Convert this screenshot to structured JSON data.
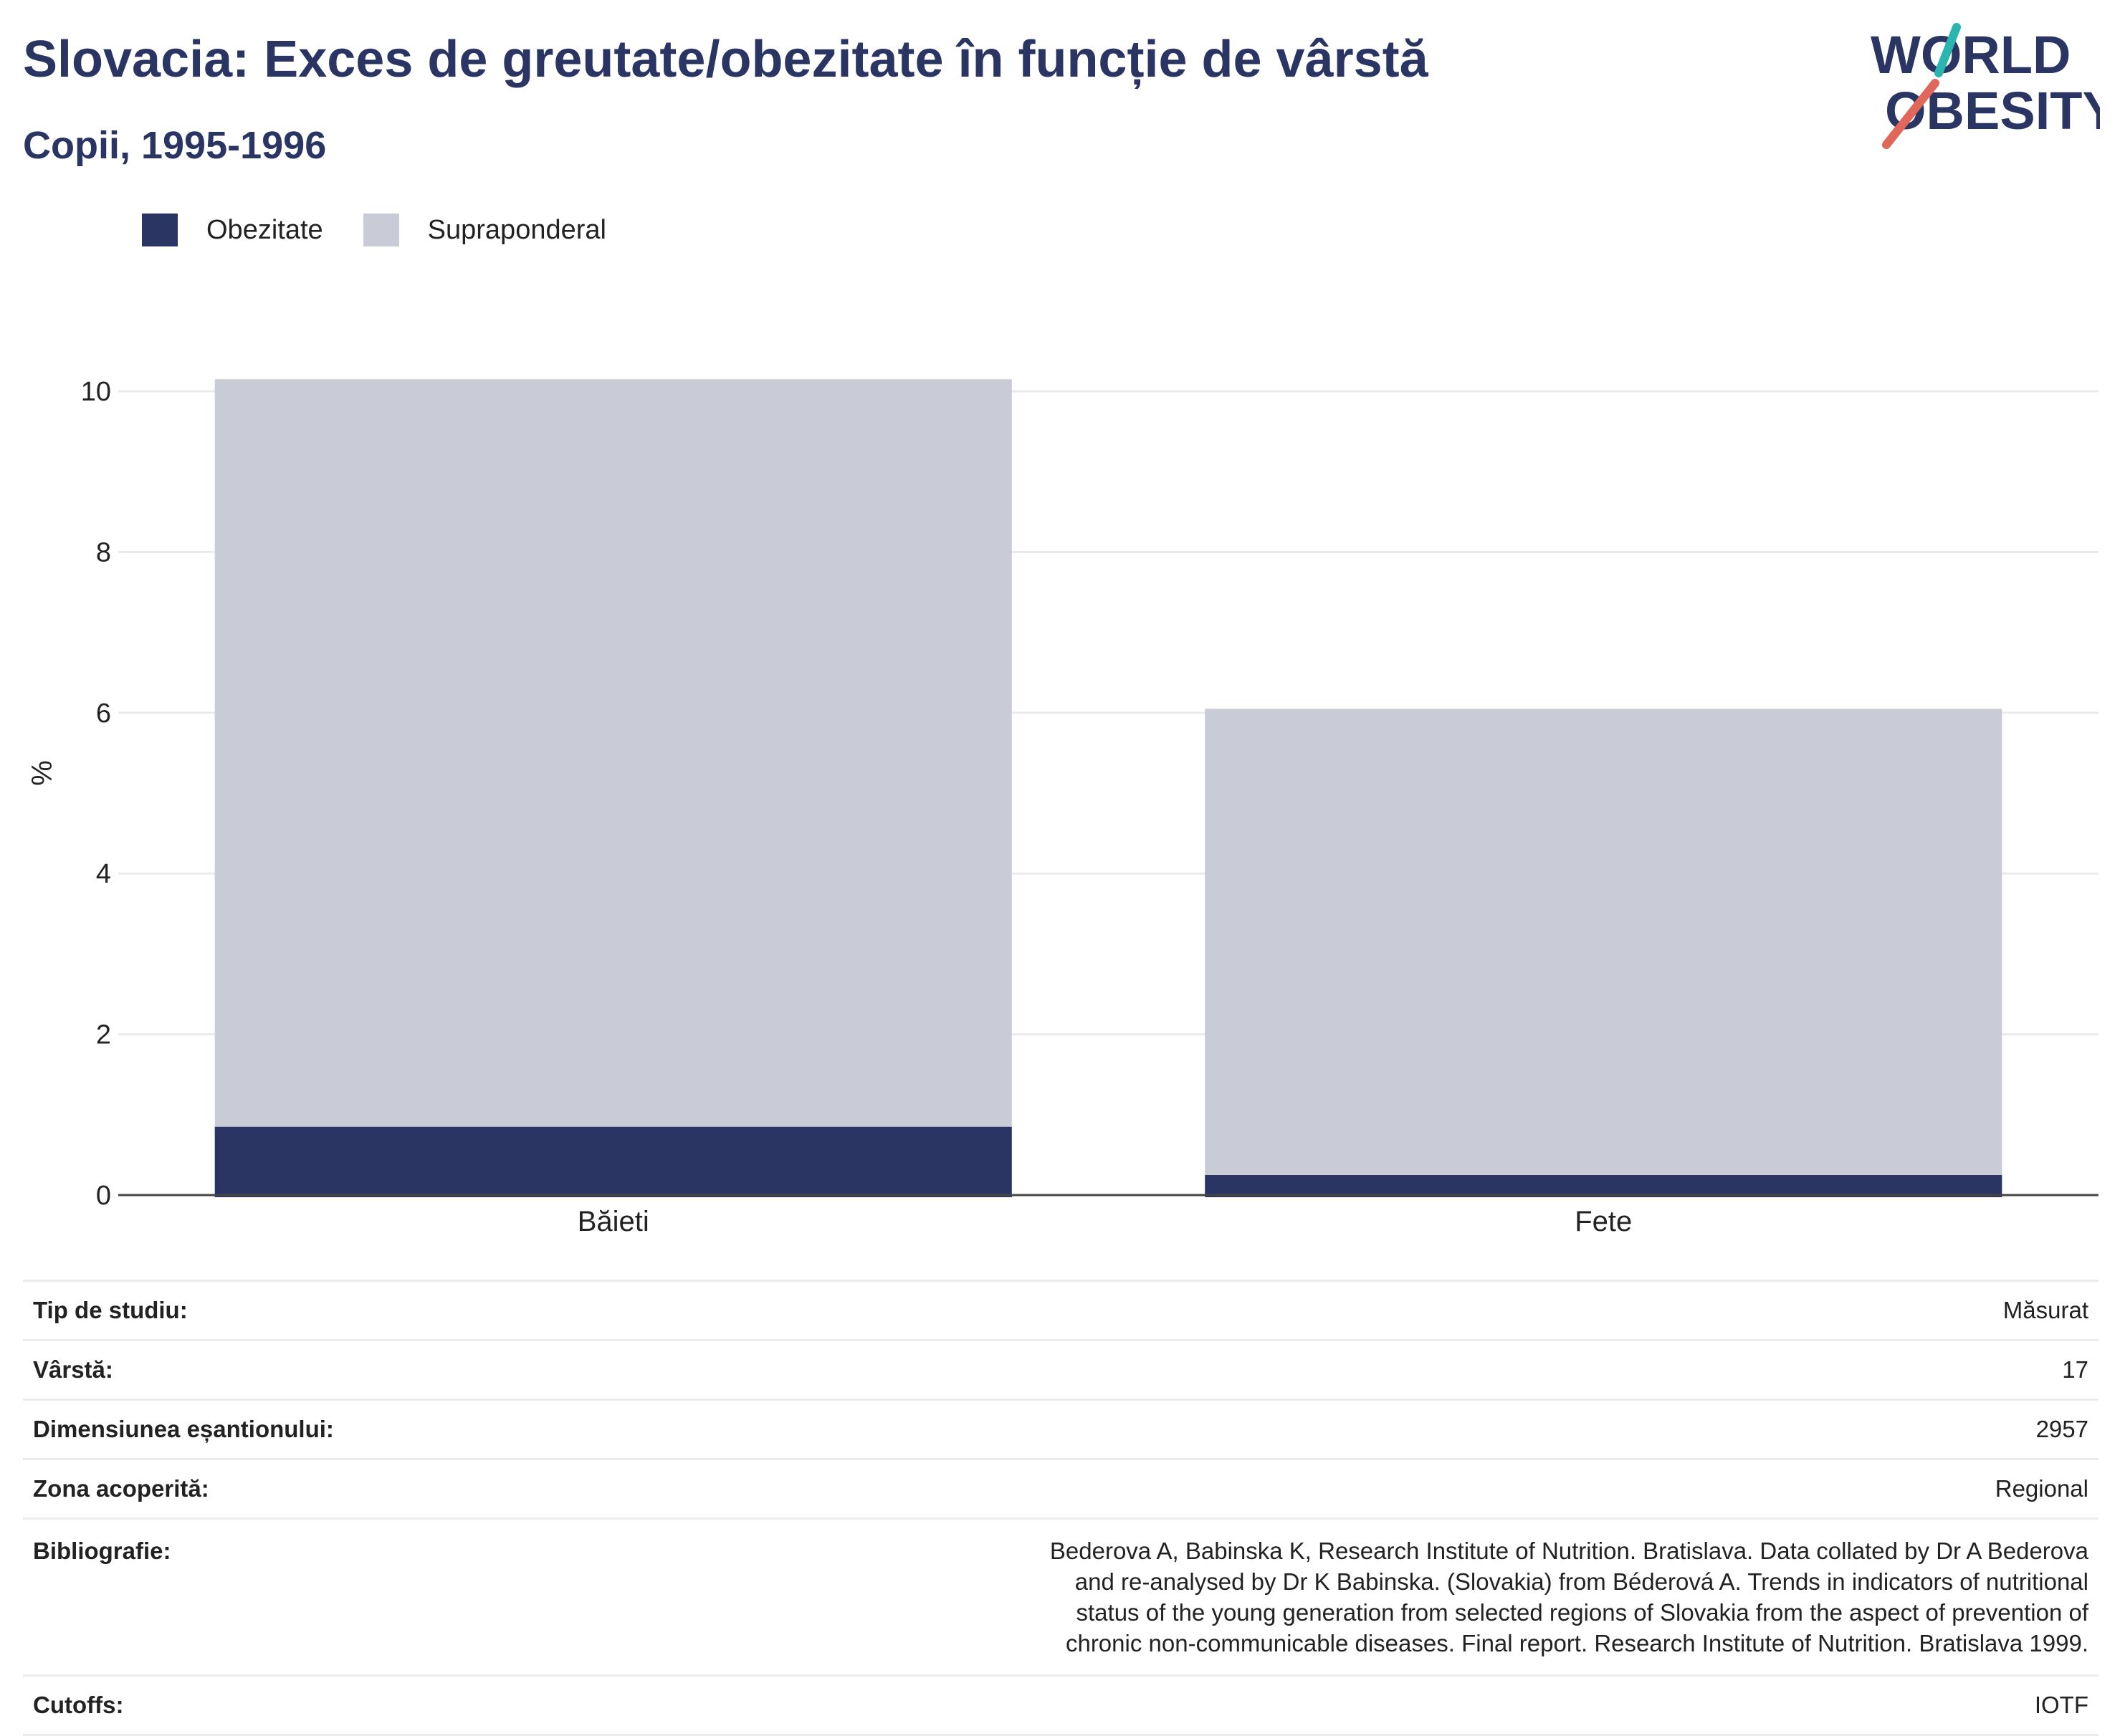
{
  "header": {
    "title": "Slovacia: Exces de greutate/obezitate în funcție de vârstă",
    "subtitle": "Copii, 1995-1996"
  },
  "logo": {
    "line1": "WORLD",
    "line2": "OBESITY",
    "colors": {
      "text": "#2a3563",
      "slash_top": "#2bb5b0",
      "slash_bottom": "#e0675a"
    }
  },
  "legend": [
    {
      "label": "Obezitate",
      "color": "#2a3563"
    },
    {
      "label": "Supraponderal",
      "color": "#c9cbd7"
    }
  ],
  "chart_data": {
    "type": "bar",
    "stacked": true,
    "categories": [
      "Băieți",
      "Fete"
    ],
    "series": [
      {
        "name": "Obezitate",
        "values": [
          0.85,
          0.25
        ],
        "color": "#2a3563"
      },
      {
        "name": "Supraponderal",
        "values": [
          9.3,
          5.8
        ],
        "color": "#c9cbd7"
      }
    ],
    "ylabel": "%",
    "yticks": [
      "0",
      "2",
      "4",
      "6",
      "8",
      "10"
    ],
    "ylim": [
      0,
      10.5
    ],
    "grid": true,
    "legend_position": "top-left"
  },
  "info": [
    {
      "key": "Tip de studiu:",
      "value": "Măsurat"
    },
    {
      "key": "Vârstă:",
      "value": "17"
    },
    {
      "key": "Dimensiunea eșantionului:",
      "value": "2957"
    },
    {
      "key": "Zona acoperită:",
      "value": "Regional"
    },
    {
      "key": "Bibliografie:",
      "value": "Bederova A, Babinska K, Research Institute of Nutrition. Bratislava. Data collated by Dr A Bederova and re-analysed by Dr K Babinska. (Slovakia) from Béderová A. Trends in indicators of nutritional status of the young generation from selected regions of Slovakia from the aspect of prevention of chronic non-communicable diseases. Final report. Research Institute of Nutrition. Bratislava 1999."
    },
    {
      "key": "Cutoffs:",
      "value": "IOTF"
    }
  ]
}
